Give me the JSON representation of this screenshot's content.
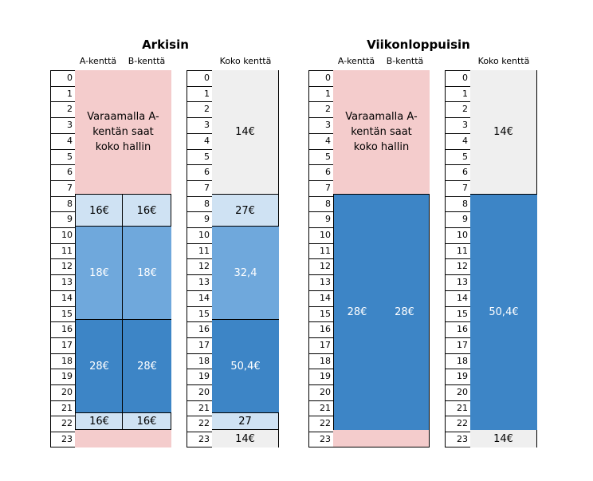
{
  "titles": {
    "weekday": "Arkisin",
    "weekend": "Viikonloppuisin"
  },
  "headers": {
    "a_field": "A-kenttä",
    "b_field": "B-kenttä",
    "full_field": "Koko kenttä"
  },
  "hours": [
    "0",
    "1",
    "2",
    "3",
    "4",
    "5",
    "6",
    "7",
    "8",
    "9",
    "10",
    "11",
    "12",
    "13",
    "14",
    "15",
    "16",
    "17",
    "18",
    "19",
    "20",
    "21",
    "22",
    "23"
  ],
  "weekday": {
    "ab_night_note": "Varaamalla A-kentän saat koko hallin",
    "a_8_9": "16€",
    "b_8_9": "16€",
    "a_10_15": "18€",
    "b_10_15": "18€",
    "a_16_21": "28€",
    "b_16_21": "28€",
    "a_22": "16€",
    "b_22": "16€",
    "full_0_7": "14€",
    "full_8_9": "27€",
    "full_10_15": "32,4",
    "full_16_21": "50,4€",
    "full_22": "27",
    "full_23": "14€"
  },
  "weekend": {
    "ab_night_note": "Varaamalla A-kentän saat koko hallin",
    "a_8_22": "28€",
    "b_8_22": "28€",
    "full_0_7": "14€",
    "full_8_22": "50,4€",
    "full_23": "14€"
  },
  "colors": {
    "pink": "#f4cccc",
    "grey": "#efefef",
    "pale_blue": "#cfe2f3",
    "mid_blue": "#6fa8dc",
    "dark_blue": "#3d85c6"
  }
}
